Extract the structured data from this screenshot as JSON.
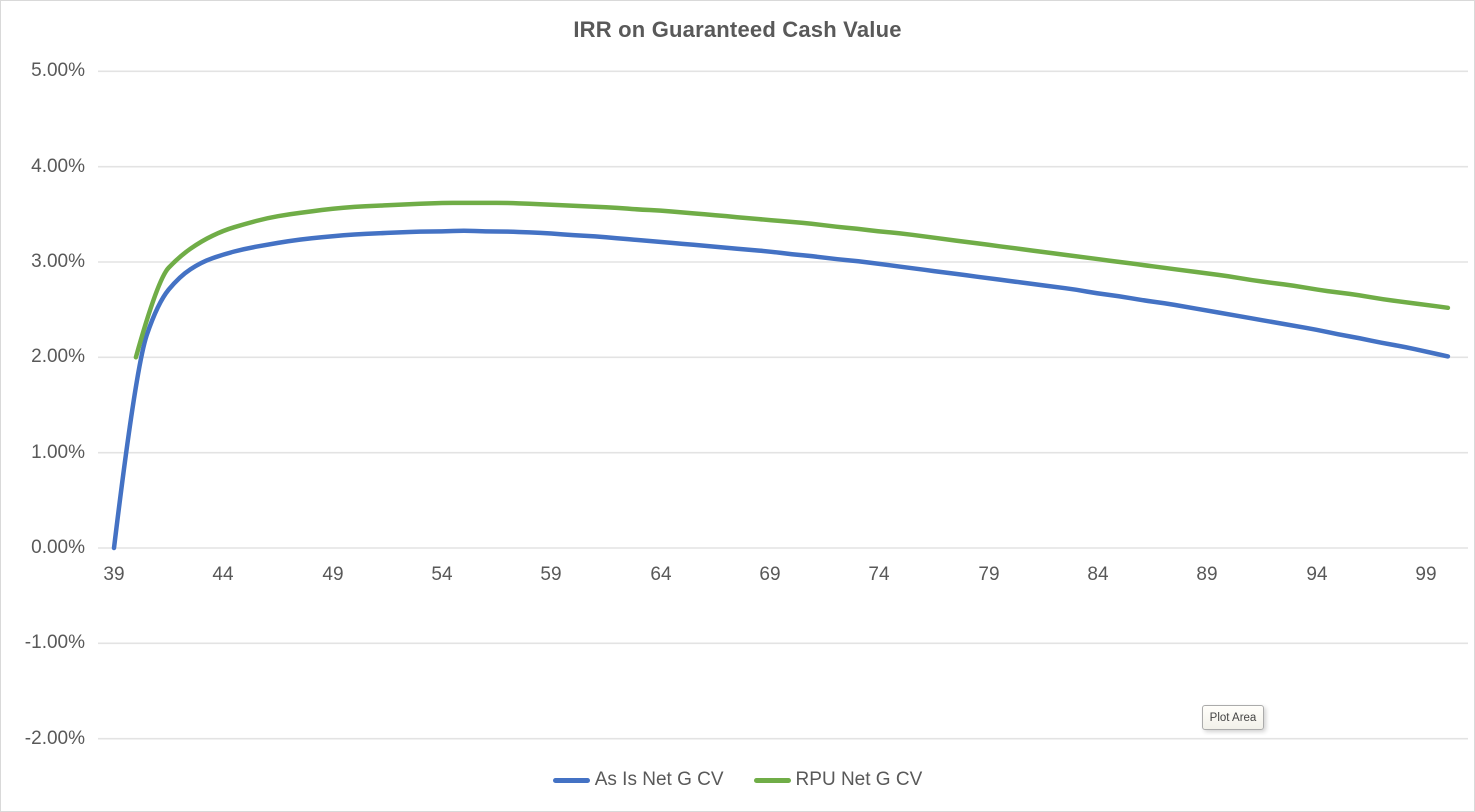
{
  "title": "IRR on Guaranteed Cash Value",
  "plot_area_tooltip": "Plot Area",
  "colors": {
    "series_blue": "#4472C4",
    "series_green": "#70AD47",
    "gridline": "#E3E3E3",
    "text": "#595959",
    "border": "#D9D9D9"
  },
  "chart_data": {
    "type": "line",
    "title": "IRR on Guaranteed Cash Value",
    "xlabel": "",
    "ylabel": "",
    "grid": true,
    "legend_position": "bottom",
    "xlim": [
      39,
      101
    ],
    "ylim": [
      -2,
      5
    ],
    "x_ticks": [
      39,
      44,
      49,
      54,
      59,
      64,
      69,
      74,
      79,
      84,
      89,
      94,
      99
    ],
    "y_ticks": [
      {
        "value": 5,
        "label": "5.00%"
      },
      {
        "value": 4,
        "label": "4.00%"
      },
      {
        "value": 3,
        "label": "3.00%"
      },
      {
        "value": 2,
        "label": "2.00%"
      },
      {
        "value": 1,
        "label": "1.00%"
      },
      {
        "value": 0,
        "label": "0.00%"
      },
      {
        "value": -1,
        "label": "-1.00%"
      },
      {
        "value": -2,
        "label": "-2.00%"
      }
    ],
    "series": [
      {
        "name": "As Is Net G CV",
        "color": "#4472C4",
        "points": [
          [
            39,
            0.0
          ],
          [
            40,
            1.9
          ],
          [
            41,
            2.57
          ],
          [
            42,
            2.85
          ],
          [
            43,
            3.0
          ],
          [
            44,
            3.08
          ],
          [
            45,
            3.14
          ],
          [
            46,
            3.18
          ],
          [
            47,
            3.22
          ],
          [
            48,
            3.25
          ],
          [
            49,
            3.27
          ],
          [
            50,
            3.29
          ],
          [
            51,
            3.3
          ],
          [
            52,
            3.31
          ],
          [
            53,
            3.32
          ],
          [
            54,
            3.32
          ],
          [
            55,
            3.33
          ],
          [
            56,
            3.32
          ],
          [
            57,
            3.32
          ],
          [
            58,
            3.31
          ],
          [
            59,
            3.3
          ],
          [
            60,
            3.28
          ],
          [
            61,
            3.27
          ],
          [
            62,
            3.25
          ],
          [
            63,
            3.23
          ],
          [
            64,
            3.21
          ],
          [
            65,
            3.19
          ],
          [
            66,
            3.17
          ],
          [
            67,
            3.15
          ],
          [
            68,
            3.13
          ],
          [
            69,
            3.11
          ],
          [
            70,
            3.08
          ],
          [
            71,
            3.06
          ],
          [
            72,
            3.03
          ],
          [
            73,
            3.01
          ],
          [
            74,
            2.98
          ],
          [
            75,
            2.95
          ],
          [
            76,
            2.92
          ],
          [
            77,
            2.89
          ],
          [
            78,
            2.86
          ],
          [
            79,
            2.83
          ],
          [
            80,
            2.8
          ],
          [
            81,
            2.77
          ],
          [
            82,
            2.74
          ],
          [
            83,
            2.71
          ],
          [
            84,
            2.67
          ],
          [
            85,
            2.64
          ],
          [
            86,
            2.6
          ],
          [
            87,
            2.57
          ],
          [
            88,
            2.53
          ],
          [
            89,
            2.49
          ],
          [
            90,
            2.45
          ],
          [
            91,
            2.41
          ],
          [
            92,
            2.37
          ],
          [
            93,
            2.33
          ],
          [
            94,
            2.29
          ],
          [
            95,
            2.24
          ],
          [
            96,
            2.2
          ],
          [
            97,
            2.15
          ],
          [
            98,
            2.11
          ],
          [
            99,
            2.06
          ],
          [
            100,
            2.01
          ]
        ]
      },
      {
        "name": "RPU Net G CV",
        "color": "#70AD47",
        "points": [
          [
            40,
            2.0
          ],
          [
            41,
            2.82
          ],
          [
            42,
            3.06
          ],
          [
            43,
            3.22
          ],
          [
            44,
            3.33
          ],
          [
            45,
            3.4
          ],
          [
            46,
            3.46
          ],
          [
            47,
            3.5
          ],
          [
            48,
            3.53
          ],
          [
            49,
            3.56
          ],
          [
            50,
            3.58
          ],
          [
            51,
            3.59
          ],
          [
            52,
            3.6
          ],
          [
            53,
            3.61
          ],
          [
            54,
            3.62
          ],
          [
            55,
            3.62
          ],
          [
            56,
            3.62
          ],
          [
            57,
            3.62
          ],
          [
            58,
            3.61
          ],
          [
            59,
            3.6
          ],
          [
            60,
            3.59
          ],
          [
            61,
            3.58
          ],
          [
            62,
            3.57
          ],
          [
            63,
            3.55
          ],
          [
            64,
            3.54
          ],
          [
            65,
            3.52
          ],
          [
            66,
            3.5
          ],
          [
            67,
            3.48
          ],
          [
            68,
            3.46
          ],
          [
            69,
            3.44
          ],
          [
            70,
            3.42
          ],
          [
            71,
            3.4
          ],
          [
            72,
            3.37
          ],
          [
            73,
            3.35
          ],
          [
            74,
            3.32
          ],
          [
            75,
            3.3
          ],
          [
            76,
            3.27
          ],
          [
            77,
            3.24
          ],
          [
            78,
            3.21
          ],
          [
            79,
            3.18
          ],
          [
            80,
            3.15
          ],
          [
            81,
            3.12
          ],
          [
            82,
            3.09
          ],
          [
            83,
            3.06
          ],
          [
            84,
            3.03
          ],
          [
            85,
            3.0
          ],
          [
            86,
            2.97
          ],
          [
            87,
            2.94
          ],
          [
            88,
            2.91
          ],
          [
            89,
            2.88
          ],
          [
            90,
            2.85
          ],
          [
            91,
            2.81
          ],
          [
            92,
            2.78
          ],
          [
            93,
            2.75
          ],
          [
            94,
            2.71
          ],
          [
            95,
            2.68
          ],
          [
            96,
            2.65
          ],
          [
            97,
            2.61
          ],
          [
            98,
            2.58
          ],
          [
            99,
            2.55
          ],
          [
            100,
            2.52
          ]
        ]
      }
    ]
  }
}
